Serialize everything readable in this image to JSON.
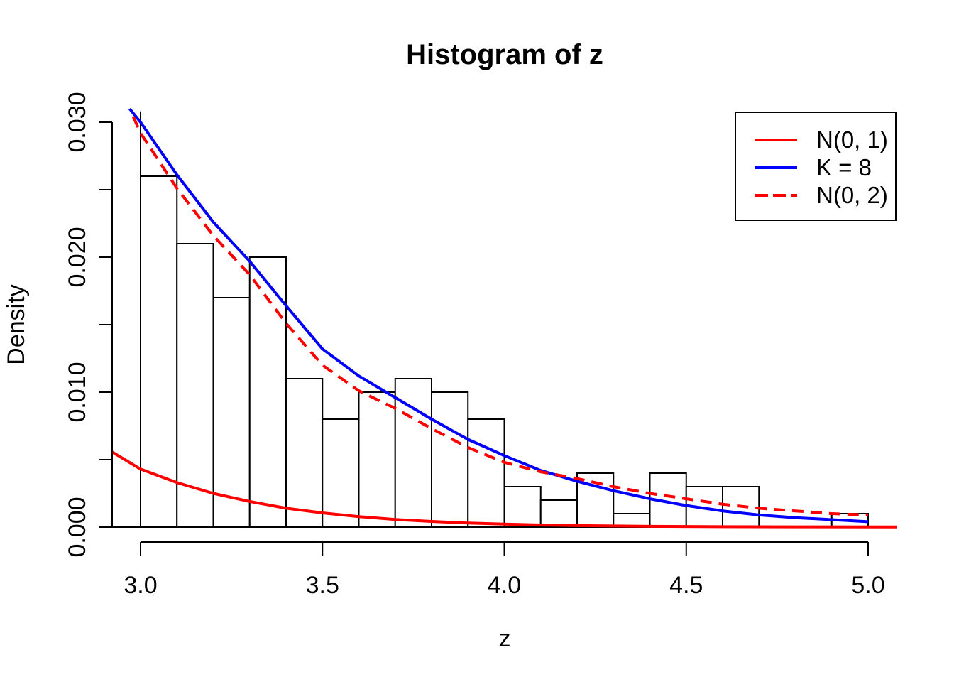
{
  "title": "Histogram of z",
  "x_axis": {
    "label": "z",
    "ticks": [
      {
        "value": 3.0,
        "label": "3.0"
      },
      {
        "value": 3.5,
        "label": "3.5"
      },
      {
        "value": 4.0,
        "label": "4.0"
      },
      {
        "value": 4.5,
        "label": "4.5"
      },
      {
        "value": 5.0,
        "label": "5.0"
      }
    ]
  },
  "y_axis": {
    "label": "Density",
    "ticks": [
      {
        "value": 0.0,
        "label": "0.000"
      },
      {
        "value": 0.005,
        "label": ""
      },
      {
        "value": 0.01,
        "label": "0.010"
      },
      {
        "value": 0.015,
        "label": ""
      },
      {
        "value": 0.02,
        "label": "0.020"
      },
      {
        "value": 0.025,
        "label": ""
      },
      {
        "value": 0.03,
        "label": "0.030"
      }
    ]
  },
  "legend": {
    "entries": [
      {
        "label": "N(0, 1)",
        "color": "#FF0000",
        "style": "solid"
      },
      {
        "label": "K = 8",
        "color": "#0000FF",
        "style": "solid"
      },
      {
        "label": "N(0, 2)",
        "color": "#FF0000",
        "style": "dashed"
      }
    ]
  },
  "colors": {
    "foreground": "#000000",
    "background": "#FFFFFF",
    "red": "#FF0000",
    "blue": "#0000FF"
  },
  "chart_data": {
    "type": "histogram+line",
    "title": "Histogram of z",
    "xlabel": "z",
    "ylabel": "Density",
    "xlim": [
      3.0,
      5.0
    ],
    "ylim": [
      0,
      0.031
    ],
    "grid": false,
    "legend_position": "top-right",
    "bin_width": 0.1,
    "bins_start": 3.0,
    "bar_densities": [
      0.026,
      0.021,
      0.017,
      0.02,
      0.011,
      0.008,
      0.01,
      0.011,
      0.01,
      0.008,
      0.003,
      0.002,
      0.004,
      0.001,
      0.004,
      0.003,
      0.003,
      0,
      0,
      0.001
    ],
    "clipped_left_bar": {
      "bin": [
        2.9,
        3.0
      ],
      "density": 0.0308,
      "note": "only right edge visible at x=3.0 (bar clipped by xlim)"
    },
    "series": [
      {
        "name": "N(0, 1)",
        "color": "#FF0000",
        "style": "solid",
        "points": [
          [
            2.92,
            0.0056
          ],
          [
            3.0,
            0.0043
          ],
          [
            3.1,
            0.0033
          ],
          [
            3.2,
            0.0025
          ],
          [
            3.3,
            0.0019
          ],
          [
            3.4,
            0.0014
          ],
          [
            3.5,
            0.00105
          ],
          [
            3.6,
            0.00078
          ],
          [
            3.7,
            0.00057
          ],
          [
            3.8,
            0.00042
          ],
          [
            3.9,
            0.0003
          ],
          [
            4.0,
            0.00022
          ],
          [
            4.1,
            0.00016
          ],
          [
            4.2,
            0.00011
          ],
          [
            4.4,
            6e-05
          ],
          [
            4.6,
            3e-05
          ],
          [
            4.8,
            2e-05
          ],
          [
            5.08,
            1e-05
          ]
        ]
      },
      {
        "name": "K = 8",
        "color": "#0000FF",
        "style": "solid",
        "points": [
          [
            2.97,
            0.031
          ],
          [
            3.0,
            0.03
          ],
          [
            3.1,
            0.0261
          ],
          [
            3.2,
            0.0226
          ],
          [
            3.3,
            0.0197
          ],
          [
            3.4,
            0.0164
          ],
          [
            3.5,
            0.0132
          ],
          [
            3.6,
            0.0112
          ],
          [
            3.7,
            0.0096
          ],
          [
            3.8,
            0.008
          ],
          [
            3.9,
            0.0065
          ],
          [
            4.0,
            0.0053
          ],
          [
            4.1,
            0.0042
          ],
          [
            4.2,
            0.0034
          ],
          [
            4.3,
            0.0027
          ],
          [
            4.4,
            0.0021
          ],
          [
            4.5,
            0.0016
          ],
          [
            4.6,
            0.0012
          ],
          [
            4.7,
            0.0009
          ],
          [
            4.8,
            0.0007
          ],
          [
            4.9,
            0.00055
          ],
          [
            5.0,
            0.0004
          ]
        ]
      },
      {
        "name": "N(0, 2)",
        "color": "#FF0000",
        "style": "dashed",
        "points": [
          [
            2.98,
            0.0304
          ],
          [
            3.0,
            0.0292
          ],
          [
            3.1,
            0.0251
          ],
          [
            3.2,
            0.0216
          ],
          [
            3.3,
            0.0187
          ],
          [
            3.4,
            0.0151
          ],
          [
            3.5,
            0.012
          ],
          [
            3.6,
            0.0101
          ],
          [
            3.7,
            0.0088
          ],
          [
            3.8,
            0.0073
          ],
          [
            3.9,
            0.0059
          ],
          [
            4.0,
            0.0048
          ],
          [
            4.1,
            0.0041
          ],
          [
            4.2,
            0.0036
          ],
          [
            4.3,
            0.003
          ],
          [
            4.4,
            0.0025
          ],
          [
            4.5,
            0.0021
          ],
          [
            4.6,
            0.0017
          ],
          [
            4.7,
            0.0014
          ],
          [
            4.8,
            0.0012
          ],
          [
            4.9,
            0.001
          ],
          [
            5.0,
            0.0009
          ]
        ]
      }
    ]
  }
}
